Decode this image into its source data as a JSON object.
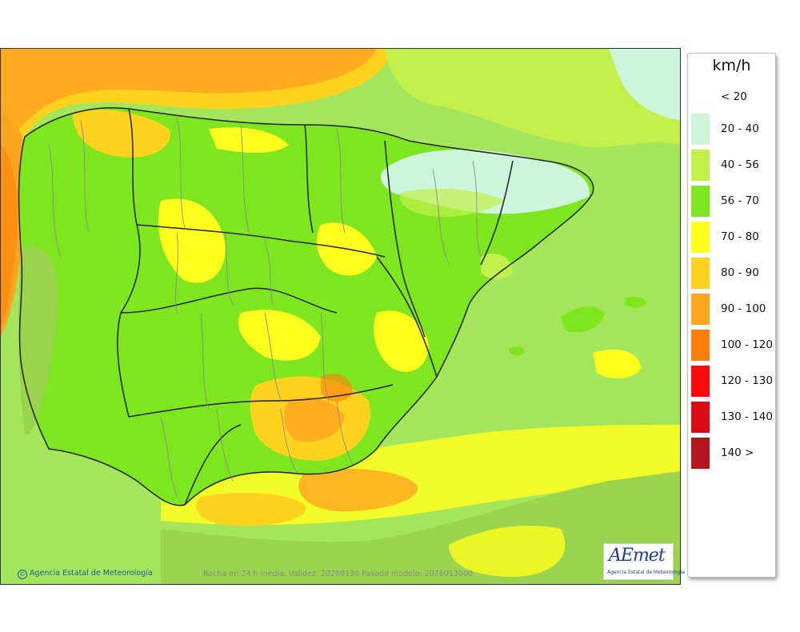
{
  "legend": {
    "title": "km/h",
    "items": [
      {
        "label": "< 20",
        "color": null
      },
      {
        "label": "20 - 40",
        "color": "#ccf5dc"
      },
      {
        "label": "40 - 56",
        "color": "#c2f04a"
      },
      {
        "label": "56 - 70",
        "color": "#7ee61e"
      },
      {
        "label": "70 - 80",
        "color": "#ffff1e"
      },
      {
        "label": "80 - 90",
        "color": "#ffd21e"
      },
      {
        "label": "90 - 100",
        "color": "#ffa51e"
      },
      {
        "label": "100 - 120",
        "color": "#ff7f0a"
      },
      {
        "label": "120 - 130",
        "color": "#ff0a0a"
      },
      {
        "label": "130 - 140",
        "color": "#dc0a14"
      },
      {
        "label": "140 >",
        "color": "#b4141e"
      }
    ]
  },
  "footer": {
    "credit": "Agencia Estatal de Meteorología",
    "validity": "Racha en 24 h media. Validez: 20260130 Pasada modelo: 2026013000"
  },
  "logo": {
    "text": "AEmet",
    "subtitle": "Agencia Estatal de Meteorología"
  },
  "colors": {
    "sea_base": "#8fd65a",
    "land_base": "#6fcf3a",
    "border_region": "#222222",
    "border_province": "#8c8c8c"
  }
}
